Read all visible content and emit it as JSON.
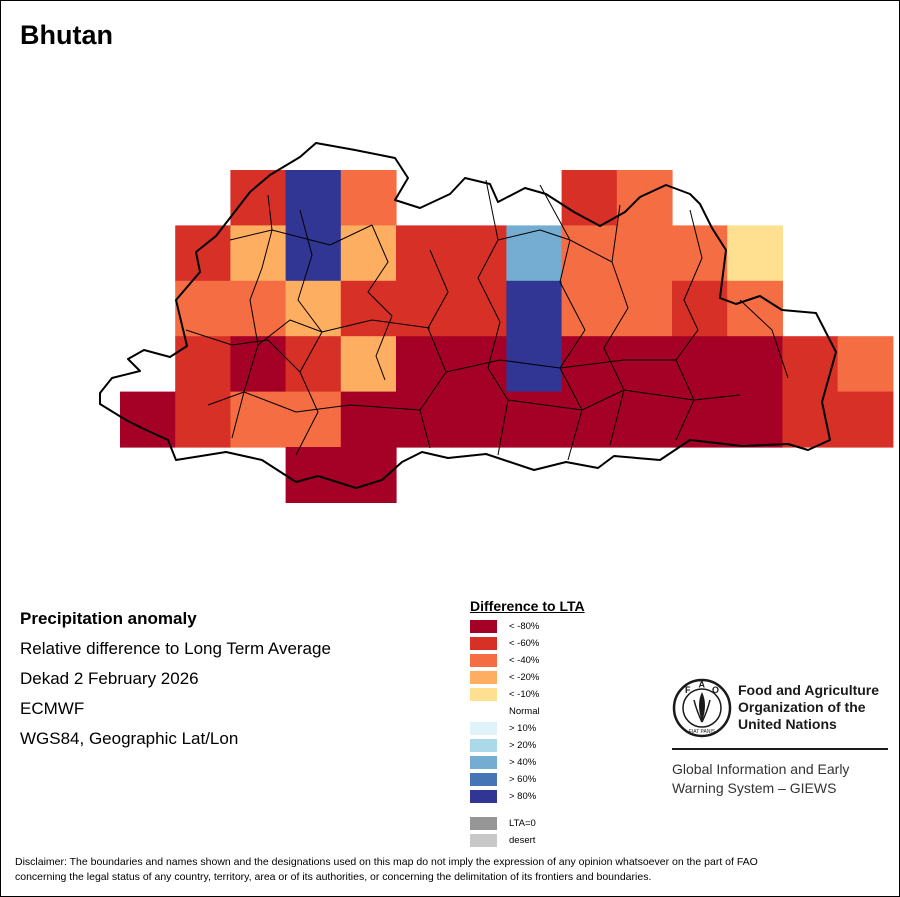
{
  "map": {
    "title": "Bhutan",
    "grid": {
      "cols": [
        "88.75",
        "89.25",
        "89.75",
        "90.25",
        "90.75",
        "91.25",
        "91.75",
        "92.25"
      ],
      "cells": [
        {
          "row": 0,
          "col": 2,
          "cls": "lt60"
        },
        {
          "row": 0,
          "col": 3,
          "cls": "gt80"
        },
        {
          "row": 0,
          "col": 4,
          "cls": "lt40"
        },
        {
          "row": 0,
          "col": 8,
          "cls": "lt60"
        },
        {
          "row": 0,
          "col": 9,
          "cls": "lt40"
        },
        {
          "row": 1,
          "col": 1,
          "cls": "lt60"
        },
        {
          "row": 1,
          "col": 2,
          "cls": "lt20"
        },
        {
          "row": 1,
          "col": 3,
          "cls": "gt80"
        },
        {
          "row": 1,
          "col": 4,
          "cls": "lt20"
        },
        {
          "row": 1,
          "col": 5,
          "cls": "lt60"
        },
        {
          "row": 1,
          "col": 6,
          "cls": "lt60"
        },
        {
          "row": 1,
          "col": 7,
          "cls": "gt40"
        },
        {
          "row": 1,
          "col": 8,
          "cls": "lt40"
        },
        {
          "row": 1,
          "col": 9,
          "cls": "lt40"
        },
        {
          "row": 1,
          "col": 10,
          "cls": "lt40"
        },
        {
          "row": 1,
          "col": 11,
          "cls": "lt10"
        },
        {
          "row": 2,
          "col": 1,
          "cls": "lt40"
        },
        {
          "row": 2,
          "col": 2,
          "cls": "lt40"
        },
        {
          "row": 2,
          "col": 3,
          "cls": "lt20"
        },
        {
          "row": 2,
          "col": 4,
          "cls": "lt60"
        },
        {
          "row": 2,
          "col": 5,
          "cls": "lt60"
        },
        {
          "row": 2,
          "col": 6,
          "cls": "lt60"
        },
        {
          "row": 2,
          "col": 7,
          "cls": "gt80"
        },
        {
          "row": 2,
          "col": 8,
          "cls": "lt40"
        },
        {
          "row": 2,
          "col": 9,
          "cls": "lt40"
        },
        {
          "row": 2,
          "col": 10,
          "cls": "lt60"
        },
        {
          "row": 2,
          "col": 11,
          "cls": "lt40"
        },
        {
          "row": 3,
          "col": 1,
          "cls": "lt60"
        },
        {
          "row": 3,
          "col": 2,
          "cls": "lt80"
        },
        {
          "row": 3,
          "col": 3,
          "cls": "lt60"
        },
        {
          "row": 3,
          "col": 4,
          "cls": "lt20"
        },
        {
          "row": 3,
          "col": 5,
          "cls": "lt80"
        },
        {
          "row": 3,
          "col": 6,
          "cls": "lt80"
        },
        {
          "row": 3,
          "col": 7,
          "cls": "gt80"
        },
        {
          "row": 3,
          "col": 8,
          "cls": "lt80"
        },
        {
          "row": 3,
          "col": 9,
          "cls": "lt80"
        },
        {
          "row": 3,
          "col": 10,
          "cls": "lt80"
        },
        {
          "row": 3,
          "col": 11,
          "cls": "lt80"
        },
        {
          "row": 3,
          "col": 12,
          "cls": "lt60"
        },
        {
          "row": 3,
          "col": 13,
          "cls": "lt40"
        },
        {
          "row": 4,
          "col": 0,
          "cls": "lt80"
        },
        {
          "row": 4,
          "col": 1,
          "cls": "lt60"
        },
        {
          "row": 4,
          "col": 2,
          "cls": "lt40"
        },
        {
          "row": 4,
          "col": 3,
          "cls": "lt40"
        },
        {
          "row": 4,
          "col": 4,
          "cls": "lt80"
        },
        {
          "row": 4,
          "col": 5,
          "cls": "lt80"
        },
        {
          "row": 4,
          "col": 6,
          "cls": "lt80"
        },
        {
          "row": 4,
          "col": 7,
          "cls": "lt80"
        },
        {
          "row": 4,
          "col": 8,
          "cls": "lt80"
        },
        {
          "row": 4,
          "col": 9,
          "cls": "lt80"
        },
        {
          "row": 4,
          "col": 10,
          "cls": "lt80"
        },
        {
          "row": 4,
          "col": 11,
          "cls": "lt80"
        },
        {
          "row": 4,
          "col": 12,
          "cls": "lt60"
        },
        {
          "row": 4,
          "col": 13,
          "cls": "lt60"
        },
        {
          "row": 5,
          "col": 3,
          "cls": "lt80"
        },
        {
          "row": 5,
          "col": 4,
          "cls": "lt80"
        }
      ]
    }
  },
  "info": {
    "heading": "Precipitation anomaly",
    "line1": "Relative difference to Long Term Average",
    "line2": "Dekad 2 February 2026",
    "line3": "ECMWF",
    "line4": "WGS84, Geographic Lat/Lon"
  },
  "legend": {
    "title": "Difference to LTA",
    "items": [
      {
        "key": "lt80",
        "label": "< -80%",
        "color": "#a50026"
      },
      {
        "key": "lt60",
        "label": "< -60%",
        "color": "#d73027"
      },
      {
        "key": "lt40",
        "label": "< -40%",
        "color": "#f46d43"
      },
      {
        "key": "lt20",
        "label": "< -20%",
        "color": "#fdae61"
      },
      {
        "key": "lt10",
        "label": "< -10%",
        "color": "#fee090"
      },
      {
        "key": "normal",
        "label": "Normal",
        "color": "#ffffff"
      },
      {
        "key": "gt10",
        "label": "> 10%",
        "color": "#e0f3f8"
      },
      {
        "key": "gt20",
        "label": "> 20%",
        "color": "#abd9e9"
      },
      {
        "key": "gt40",
        "label": "> 40%",
        "color": "#74add1"
      },
      {
        "key": "gt60",
        "label": "> 60%",
        "color": "#4575b4"
      },
      {
        "key": "gt80",
        "label": "> 80%",
        "color": "#313695"
      }
    ],
    "extra": [
      {
        "key": "lta0",
        "label": "LTA=0",
        "color": "#969696"
      },
      {
        "key": "desert",
        "label": "desert",
        "color": "#c8c8c8"
      }
    ]
  },
  "org": {
    "logo_letters": [
      "F",
      "A",
      "O"
    ],
    "logo_motto": "FIAT PANIS",
    "name_line1": "Food and Agriculture",
    "name_line2": "Organization of the",
    "name_line3": "United Nations",
    "giews_line1": "Global Information and Early",
    "giews_line2": "Warning System – GIEWS"
  },
  "disclaimer": {
    "line1": "Disclaimer: The boundaries and names shown and the designations used on this map do not imply the expression of any opinion whatsoever on the part of FAO",
    "line2": "concerning the legal status of any country, territory, area or of its authorities, or concerning the delimitation of its frontiers and boundaries."
  }
}
